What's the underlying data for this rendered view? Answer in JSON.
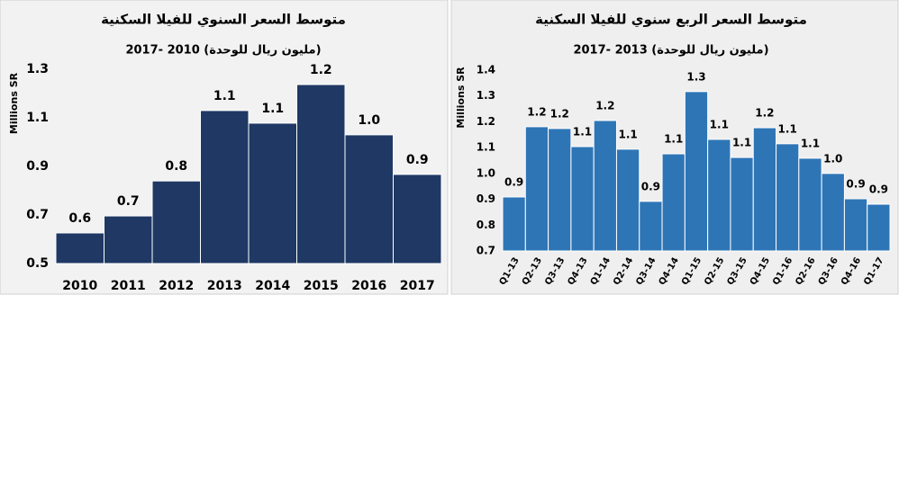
{
  "chart_data": [
    {
      "type": "bar",
      "title": "متوسط السعر السنوي للفيلا السكنية",
      "subtitle": "(مليون ريال للوحدة) 2010 -2017",
      "y_label": "Millions SR",
      "categories": [
        "2010",
        "2011",
        "2012",
        "2013",
        "2014",
        "2015",
        "2016",
        "2017"
      ],
      "values": [
        0.626,
        0.696,
        0.84,
        1.13,
        1.078,
        1.237,
        1.03,
        0.867
      ],
      "value_labels": [
        "0.6",
        "0.7",
        "0.8",
        "1.1",
        "1.1",
        "1.2",
        "1.0",
        "0.9"
      ],
      "color": "#1f3864",
      "ylim": [
        0.5,
        1.3
      ],
      "yticks": [
        0.5,
        0.7,
        0.9,
        1.1,
        1.3
      ],
      "grid": false
    },
    {
      "type": "bar",
      "title": "متوسط السعر الربع سنوي للفيلا السكنية",
      "subtitle": "(مليون ريال للوحدة) 2013 -2017",
      "y_label": "Millions SR",
      "categories": [
        "Q1-13",
        "Q2-13",
        "Q3-13",
        "Q4-13",
        "Q1-14",
        "Q2-14",
        "Q3-14",
        "Q4-14",
        "Q1-15",
        "Q2-15",
        "Q3-15",
        "Q4-15",
        "Q1-16",
        "Q2-16",
        "Q3-16",
        "Q4-16",
        "Q1-17"
      ],
      "values": [
        0.909,
        1.181,
        1.174,
        1.104,
        1.205,
        1.094,
        0.892,
        1.076,
        1.317,
        1.132,
        1.062,
        1.177,
        1.115,
        1.059,
        1.0,
        0.902,
        0.881
      ],
      "value_labels": [
        "0.9",
        "1.2",
        "1.2",
        "1.1",
        "1.2",
        "1.1",
        "0.9",
        "1.1",
        "1.3",
        "1.1",
        "1.1",
        "1.2",
        "1.1",
        "1.1",
        "1.0",
        "0.9",
        "0.9"
      ],
      "color": "#2e75b6",
      "ylim": [
        0.7,
        1.4
      ],
      "yticks": [
        0.7,
        0.8,
        0.9,
        {
          "value": 1,
          "label": "1.0"
        },
        1.1,
        1.2,
        1.3,
        1.4
      ],
      "grid": false
    }
  ]
}
